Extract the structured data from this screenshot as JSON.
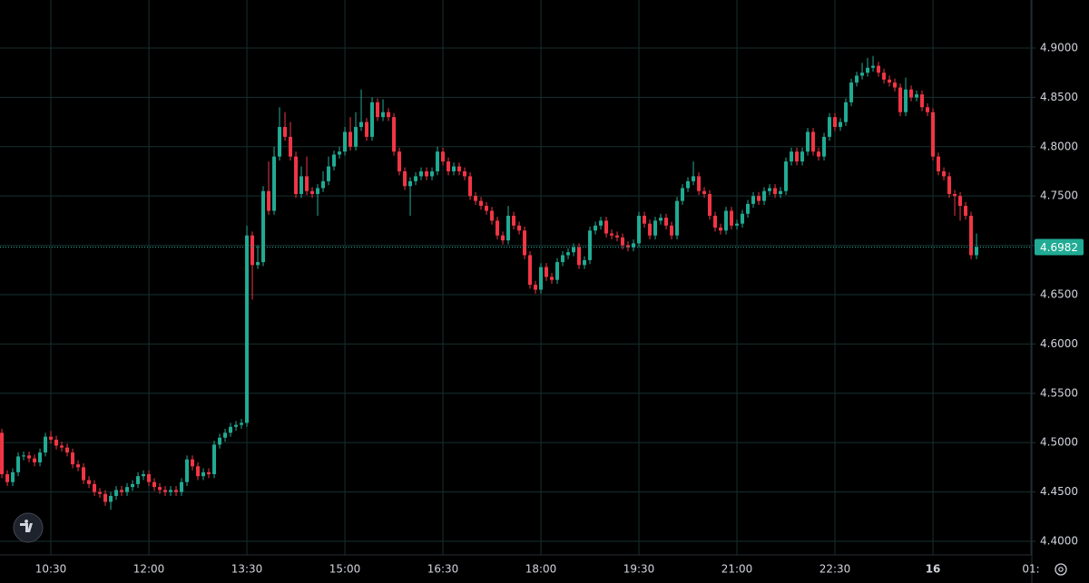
{
  "chart_data": {
    "type": "candlestick",
    "up_color": "#22ab94",
    "down_color": "#f23645",
    "grid": true,
    "xlim": [
      583.3,
      1530.8
    ],
    "ylim": [
      4.3862,
      4.9487
    ],
    "xticks": [
      {
        "value": 630,
        "label": "10:30"
      },
      {
        "value": 720,
        "label": "12:00"
      },
      {
        "value": 810,
        "label": "13:30"
      },
      {
        "value": 900,
        "label": "15:00"
      },
      {
        "value": 990,
        "label": "16:30"
      },
      {
        "value": 1080,
        "label": "18:00"
      },
      {
        "value": 1170,
        "label": "19:30"
      },
      {
        "value": 1260,
        "label": "21:00"
      },
      {
        "value": 1350,
        "label": "22:30"
      },
      {
        "value": 1440,
        "label": "16"
      },
      {
        "value": 1530,
        "label": "01:"
      }
    ],
    "yticks": [
      {
        "value": 4.4,
        "label": "4.4000"
      },
      {
        "value": 4.45,
        "label": "4.4500"
      },
      {
        "value": 4.5,
        "label": "4.5000"
      },
      {
        "value": 4.55,
        "label": "4.5500"
      },
      {
        "value": 4.6,
        "label": "4.6000"
      },
      {
        "value": 4.65,
        "label": "4.6500"
      },
      {
        "value": 4.7,
        "label": "4.7000"
      },
      {
        "value": 4.75,
        "label": "4.7500"
      },
      {
        "value": 4.8,
        "label": "4.8000"
      },
      {
        "value": 4.85,
        "label": "4.8500"
      },
      {
        "value": 4.9,
        "label": "4.9000"
      }
    ],
    "x": [
      585,
      590,
      595,
      600,
      605,
      610,
      615,
      620,
      625,
      630,
      635,
      640,
      645,
      650,
      655,
      660,
      665,
      670,
      675,
      680,
      685,
      690,
      695,
      700,
      705,
      710,
      715,
      720,
      725,
      730,
      735,
      740,
      745,
      750,
      755,
      760,
      765,
      770,
      775,
      780,
      785,
      790,
      795,
      800,
      805,
      810,
      815,
      820,
      825,
      830,
      835,
      840,
      845,
      850,
      855,
      860,
      865,
      870,
      875,
      880,
      885,
      890,
      895,
      900,
      905,
      910,
      915,
      920,
      925,
      930,
      935,
      940,
      945,
      950,
      955,
      960,
      965,
      970,
      975,
      980,
      985,
      990,
      995,
      1000,
      1005,
      1010,
      1015,
      1020,
      1025,
      1030,
      1035,
      1040,
      1045,
      1050,
      1055,
      1060,
      1065,
      1070,
      1075,
      1080,
      1085,
      1090,
      1095,
      1100,
      1105,
      1110,
      1115,
      1120,
      1125,
      1130,
      1135,
      1140,
      1145,
      1150,
      1155,
      1160,
      1165,
      1170,
      1175,
      1180,
      1185,
      1190,
      1195,
      1200,
      1205,
      1210,
      1215,
      1220,
      1225,
      1230,
      1235,
      1240,
      1245,
      1250,
      1255,
      1260,
      1265,
      1270,
      1275,
      1280,
      1285,
      1290,
      1295,
      1300,
      1305,
      1310,
      1315,
      1320,
      1325,
      1330,
      1335,
      1340,
      1345,
      1350,
      1355,
      1360,
      1365,
      1370,
      1375,
      1380,
      1385,
      1390,
      1395,
      1400,
      1405,
      1410,
      1415,
      1420,
      1425,
      1430,
      1435,
      1440,
      1445,
      1450,
      1455,
      1460,
      1465,
      1470,
      1475,
      1480
    ],
    "candles": [
      [
        4.51,
        4.514,
        4.464,
        4.468
      ],
      [
        4.468,
        4.472,
        4.456,
        4.46
      ],
      [
        4.46,
        4.474,
        4.456,
        4.47
      ],
      [
        4.47,
        4.49,
        4.466,
        4.486
      ],
      [
        4.486,
        4.491,
        4.482,
        4.487
      ],
      [
        4.487,
        4.491,
        4.48,
        4.484
      ],
      [
        4.484,
        4.488,
        4.476,
        4.48
      ],
      [
        4.48,
        4.494,
        4.476,
        4.49
      ],
      [
        4.49,
        4.51,
        4.486,
        4.506
      ],
      [
        4.506,
        4.512,
        4.499,
        4.503
      ],
      [
        4.503,
        4.507,
        4.493,
        4.497
      ],
      [
        4.497,
        4.501,
        4.491,
        4.495
      ],
      [
        4.495,
        4.499,
        4.486,
        4.49
      ],
      [
        4.49,
        4.494,
        4.474,
        4.478
      ],
      [
        4.478,
        4.482,
        4.471,
        4.475
      ],
      [
        4.475,
        4.479,
        4.458,
        4.462
      ],
      [
        4.462,
        4.466,
        4.454,
        4.458
      ],
      [
        4.458,
        4.462,
        4.446,
        4.45
      ],
      [
        4.45,
        4.454,
        4.444,
        4.448
      ],
      [
        4.448,
        4.452,
        4.436,
        4.44
      ],
      [
        4.44,
        4.45,
        4.432,
        4.446
      ],
      [
        4.446,
        4.456,
        4.442,
        4.452
      ],
      [
        4.452,
        4.456,
        4.446,
        4.45
      ],
      [
        4.45,
        4.459,
        4.446,
        4.455
      ],
      [
        4.455,
        4.462,
        4.451,
        4.458
      ],
      [
        4.458,
        4.47,
        4.454,
        4.466
      ],
      [
        4.466,
        4.472,
        4.462,
        4.468
      ],
      [
        4.468,
        4.472,
        4.456,
        4.46
      ],
      [
        4.46,
        4.464,
        4.451,
        4.455
      ],
      [
        4.455,
        4.459,
        4.448,
        4.452
      ],
      [
        4.452,
        4.456,
        4.446,
        4.45
      ],
      [
        4.45,
        4.456,
        4.446,
        4.452
      ],
      [
        4.452,
        4.456,
        4.446,
        4.45
      ],
      [
        4.45,
        4.464,
        4.446,
        4.46
      ],
      [
        4.46,
        4.487,
        4.456,
        4.483
      ],
      [
        4.483,
        4.487,
        4.472,
        4.476
      ],
      [
        4.476,
        4.48,
        4.462,
        4.466
      ],
      [
        4.466,
        4.474,
        4.462,
        4.47
      ],
      [
        4.47,
        4.474,
        4.464,
        4.468
      ],
      [
        4.468,
        4.502,
        4.464,
        4.498
      ],
      [
        4.498,
        4.509,
        4.494,
        4.505
      ],
      [
        4.505,
        4.514,
        4.501,
        4.51
      ],
      [
        4.51,
        4.52,
        4.506,
        4.516
      ],
      [
        4.516,
        4.522,
        4.512,
        4.518
      ],
      [
        4.518,
        4.524,
        4.514,
        4.52
      ],
      [
        4.52,
        4.72,
        4.516,
        4.71
      ],
      [
        4.71,
        4.714,
        4.645,
        4.68
      ],
      [
        4.68,
        4.7,
        4.676,
        4.683
      ],
      [
        4.683,
        4.76,
        4.679,
        4.755
      ],
      [
        4.755,
        4.785,
        4.731,
        4.735
      ],
      [
        4.735,
        4.8,
        4.731,
        4.79
      ],
      [
        4.79,
        4.84,
        4.786,
        4.82
      ],
      [
        4.82,
        4.835,
        4.806,
        4.81
      ],
      [
        4.81,
        4.825,
        4.786,
        4.79
      ],
      [
        4.79,
        4.795,
        4.748,
        4.752
      ],
      [
        4.752,
        4.78,
        4.748,
        4.77
      ],
      [
        4.77,
        4.79,
        4.751,
        4.755
      ],
      [
        4.755,
        4.759,
        4.748,
        4.752
      ],
      [
        4.752,
        4.762,
        4.73,
        4.758
      ],
      [
        4.758,
        4.775,
        4.754,
        4.765
      ],
      [
        4.765,
        4.79,
        4.761,
        4.78
      ],
      [
        4.78,
        4.796,
        4.776,
        4.792
      ],
      [
        4.792,
        4.8,
        4.788,
        4.795
      ],
      [
        4.795,
        4.82,
        4.791,
        4.815
      ],
      [
        4.815,
        4.83,
        4.796,
        4.8
      ],
      [
        4.8,
        4.835,
        4.796,
        4.82
      ],
      [
        4.82,
        4.858,
        4.816,
        4.825
      ],
      [
        4.825,
        4.829,
        4.806,
        4.81
      ],
      [
        4.81,
        4.85,
        4.806,
        4.845
      ],
      [
        4.845,
        4.849,
        4.826,
        4.83
      ],
      [
        4.83,
        4.848,
        4.826,
        4.835
      ],
      [
        4.835,
        4.839,
        4.826,
        4.83
      ],
      [
        4.83,
        4.834,
        4.791,
        4.795
      ],
      [
        4.795,
        4.799,
        4.771,
        4.775
      ],
      [
        4.775,
        4.779,
        4.756,
        4.76
      ],
      [
        4.76,
        4.769,
        4.73,
        4.765
      ],
      [
        4.765,
        4.774,
        4.761,
        4.77
      ],
      [
        4.77,
        4.779,
        4.766,
        4.775
      ],
      [
        4.775,
        4.779,
        4.766,
        4.77
      ],
      [
        4.77,
        4.779,
        4.766,
        4.775
      ],
      [
        4.775,
        4.8,
        4.771,
        4.795
      ],
      [
        4.795,
        4.799,
        4.781,
        4.785
      ],
      [
        4.785,
        4.789,
        4.771,
        4.775
      ],
      [
        4.775,
        4.784,
        4.771,
        4.78
      ],
      [
        4.78,
        4.784,
        4.771,
        4.775
      ],
      [
        4.775,
        4.779,
        4.766,
        4.77
      ],
      [
        4.77,
        4.774,
        4.746,
        4.75
      ],
      [
        4.75,
        4.754,
        4.741,
        4.745
      ],
      [
        4.745,
        4.749,
        4.736,
        4.74
      ],
      [
        4.74,
        4.744,
        4.731,
        4.735
      ],
      [
        4.735,
        4.739,
        4.721,
        4.725
      ],
      [
        4.725,
        4.729,
        4.706,
        4.71
      ],
      [
        4.71,
        4.714,
        4.701,
        4.705
      ],
      [
        4.705,
        4.74,
        4.701,
        4.73
      ],
      [
        4.73,
        4.734,
        4.716,
        4.72
      ],
      [
        4.72,
        4.724,
        4.711,
        4.715
      ],
      [
        4.715,
        4.719,
        4.686,
        4.69
      ],
      [
        4.69,
        4.694,
        4.656,
        4.66
      ],
      [
        4.66,
        4.664,
        4.651,
        4.655
      ],
      [
        4.655,
        4.682,
        4.651,
        4.678
      ],
      [
        4.678,
        4.682,
        4.664,
        4.668
      ],
      [
        4.668,
        4.672,
        4.661,
        4.665
      ],
      [
        4.665,
        4.687,
        4.661,
        4.683
      ],
      [
        4.683,
        4.694,
        4.679,
        4.69
      ],
      [
        4.69,
        4.697,
        4.686,
        4.693
      ],
      [
        4.693,
        4.702,
        4.689,
        4.698
      ],
      [
        4.698,
        4.702,
        4.676,
        4.68
      ],
      [
        4.68,
        4.689,
        4.676,
        4.685
      ],
      [
        4.685,
        4.719,
        4.681,
        4.715
      ],
      [
        4.715,
        4.724,
        4.711,
        4.72
      ],
      [
        4.72,
        4.729,
        4.716,
        4.725
      ],
      [
        4.725,
        4.729,
        4.708,
        4.712
      ],
      [
        4.712,
        4.716,
        4.706,
        4.71
      ],
      [
        4.71,
        4.714,
        4.704,
        4.708
      ],
      [
        4.708,
        4.712,
        4.696,
        4.7
      ],
      [
        4.7,
        4.704,
        4.694,
        4.698
      ],
      [
        4.698,
        4.706,
        4.694,
        4.702
      ],
      [
        4.702,
        4.734,
        4.698,
        4.73
      ],
      [
        4.73,
        4.734,
        4.718,
        4.722
      ],
      [
        4.722,
        4.726,
        4.706,
        4.71
      ],
      [
        4.71,
        4.729,
        4.706,
        4.725
      ],
      [
        4.725,
        4.732,
        4.721,
        4.728
      ],
      [
        4.728,
        4.732,
        4.716,
        4.72
      ],
      [
        4.72,
        4.724,
        4.706,
        4.71
      ],
      [
        4.71,
        4.749,
        4.706,
        4.745
      ],
      [
        4.745,
        4.762,
        4.741,
        4.758
      ],
      [
        4.758,
        4.769,
        4.754,
        4.765
      ],
      [
        4.765,
        4.785,
        4.761,
        4.77
      ],
      [
        4.77,
        4.774,
        4.751,
        4.755
      ],
      [
        4.755,
        4.759,
        4.748,
        4.752
      ],
      [
        4.752,
        4.756,
        4.726,
        4.73
      ],
      [
        4.73,
        4.734,
        4.714,
        4.718
      ],
      [
        4.718,
        4.722,
        4.711,
        4.715
      ],
      [
        4.715,
        4.739,
        4.711,
        4.735
      ],
      [
        4.735,
        4.739,
        4.716,
        4.72
      ],
      [
        4.72,
        4.726,
        4.716,
        4.722
      ],
      [
        4.722,
        4.736,
        4.718,
        4.732
      ],
      [
        4.732,
        4.746,
        4.728,
        4.742
      ],
      [
        4.742,
        4.754,
        4.738,
        4.75
      ],
      [
        4.75,
        4.754,
        4.741,
        4.745
      ],
      [
        4.745,
        4.759,
        4.741,
        4.755
      ],
      [
        4.755,
        4.762,
        4.751,
        4.758
      ],
      [
        4.758,
        4.762,
        4.748,
        4.752
      ],
      [
        4.752,
        4.759,
        4.748,
        4.755
      ],
      [
        4.755,
        4.789,
        4.751,
        4.785
      ],
      [
        4.785,
        4.799,
        4.781,
        4.795
      ],
      [
        4.795,
        4.799,
        4.781,
        4.785
      ],
      [
        4.785,
        4.799,
        4.781,
        4.795
      ],
      [
        4.795,
        4.819,
        4.791,
        4.815
      ],
      [
        4.815,
        4.819,
        4.791,
        4.795
      ],
      [
        4.795,
        4.799,
        4.786,
        4.79
      ],
      [
        4.79,
        4.814,
        4.786,
        4.81
      ],
      [
        4.81,
        4.834,
        4.806,
        4.83
      ],
      [
        4.83,
        4.834,
        4.816,
        4.82
      ],
      [
        4.82,
        4.829,
        4.816,
        4.825
      ],
      [
        4.825,
        4.849,
        4.821,
        4.845
      ],
      [
        4.845,
        4.869,
        4.841,
        4.865
      ],
      [
        4.865,
        4.876,
        4.861,
        4.872
      ],
      [
        4.872,
        4.885,
        4.868,
        4.875
      ],
      [
        4.875,
        4.89,
        4.871,
        4.88
      ],
      [
        4.88,
        4.892,
        4.876,
        4.882
      ],
      [
        4.882,
        4.886,
        4.871,
        4.875
      ],
      [
        4.875,
        4.879,
        4.864,
        4.868
      ],
      [
        4.868,
        4.872,
        4.861,
        4.865
      ],
      [
        4.865,
        4.869,
        4.856,
        4.86
      ],
      [
        4.86,
        4.864,
        4.831,
        4.835
      ],
      [
        4.835,
        4.87,
        4.831,
        4.858
      ],
      [
        4.858,
        4.862,
        4.846,
        4.85
      ],
      [
        4.85,
        4.857,
        4.846,
        4.853
      ],
      [
        4.853,
        4.857,
        4.836,
        4.84
      ],
      [
        4.84,
        4.844,
        4.831,
        4.835
      ],
      [
        4.835,
        4.839,
        4.786,
        4.79
      ],
      [
        4.79,
        4.794,
        4.771,
        4.775
      ],
      [
        4.775,
        4.779,
        4.766,
        4.77
      ],
      [
        4.77,
        4.774,
        4.748,
        4.752
      ],
      [
        4.752,
        4.756,
        4.73,
        4.75
      ],
      [
        4.75,
        4.754,
        4.725,
        4.74
      ],
      [
        4.74,
        4.744,
        4.726,
        4.73
      ],
      [
        4.73,
        4.734,
        4.686,
        4.69
      ],
      [
        4.69,
        4.712,
        4.686,
        4.6982
      ]
    ]
  }
}
